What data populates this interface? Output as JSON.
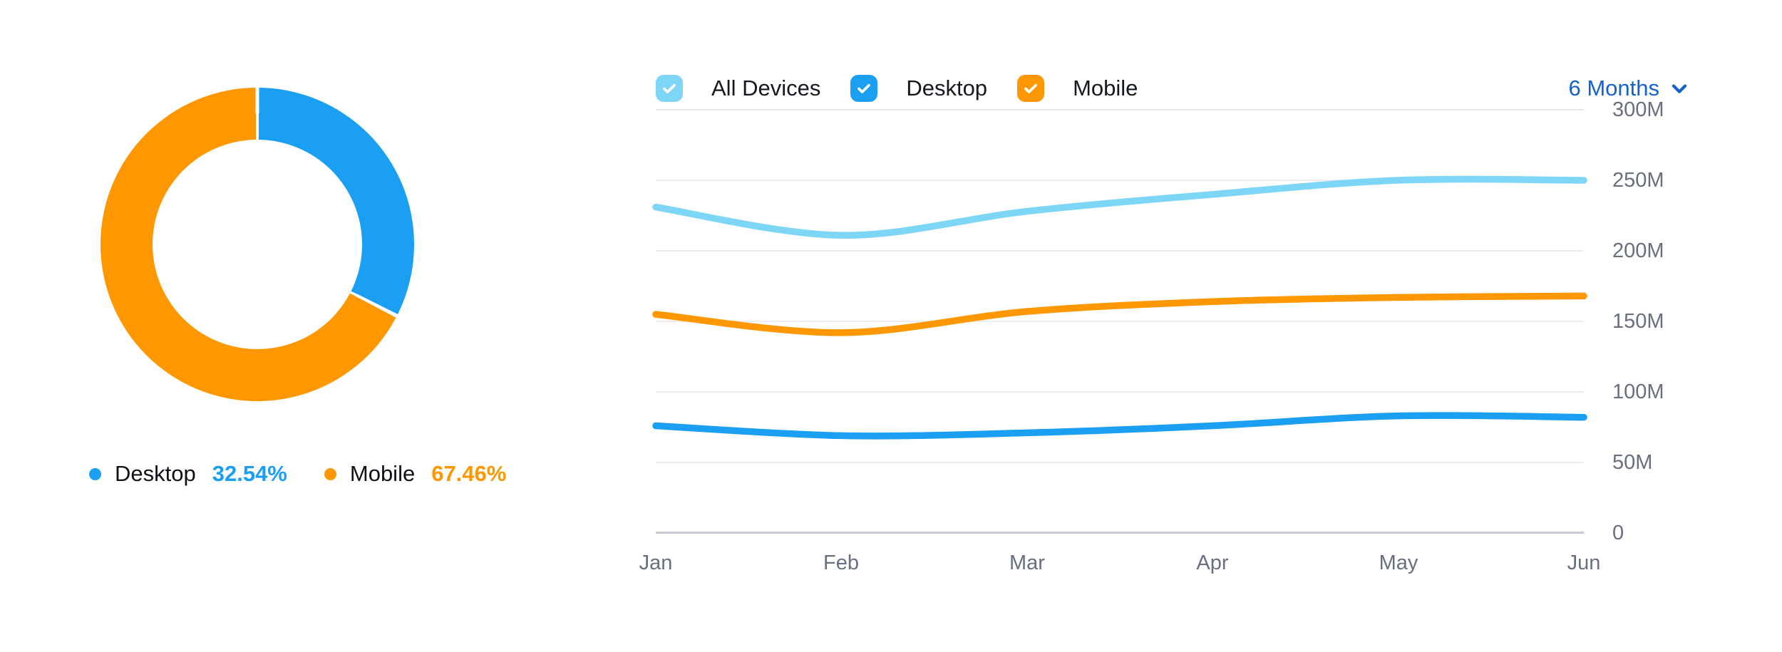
{
  "donut": {
    "slices": [
      {
        "name": "Desktop",
        "percent": 32.54,
        "color": "#1b9ff2"
      },
      {
        "name": "Mobile",
        "percent": 67.46,
        "color": "#ff9800"
      }
    ],
    "legend": [
      {
        "label": "Desktop",
        "value": "32.54%",
        "color": "#1b9ff2"
      },
      {
        "label": "Mobile",
        "value": "67.46%",
        "color": "#ff9800"
      }
    ]
  },
  "chart": {
    "legend": [
      {
        "label": "All Devices",
        "color": "#7dd6f6",
        "checked": true
      },
      {
        "label": "Desktop",
        "color": "#1b9ff2",
        "checked": true
      },
      {
        "label": "Mobile",
        "color": "#ff9800",
        "checked": true
      }
    ],
    "period_selector": "6 Months",
    "accent_color": "#1363cb"
  },
  "chart_data": {
    "type": "line",
    "x": [
      "Jan",
      "Feb",
      "Mar",
      "Apr",
      "May",
      "Jun"
    ],
    "series": [
      {
        "name": "All Devices",
        "color": "#7dd6f6",
        "values": [
          231,
          211,
          228,
          240,
          250,
          250
        ]
      },
      {
        "name": "Mobile",
        "color": "#ff9800",
        "values": [
          155,
          142,
          157,
          164,
          167,
          168
        ]
      },
      {
        "name": "Desktop",
        "color": "#1b9ff2",
        "values": [
          76,
          69,
          71,
          76,
          83,
          82
        ]
      }
    ],
    "unit": "M",
    "y_ticks": [
      "0",
      "50M",
      "100M",
      "150M",
      "200M",
      "250M",
      "300M"
    ],
    "ylim": [
      0,
      300
    ],
    "grid": true,
    "legend_position": "top"
  }
}
